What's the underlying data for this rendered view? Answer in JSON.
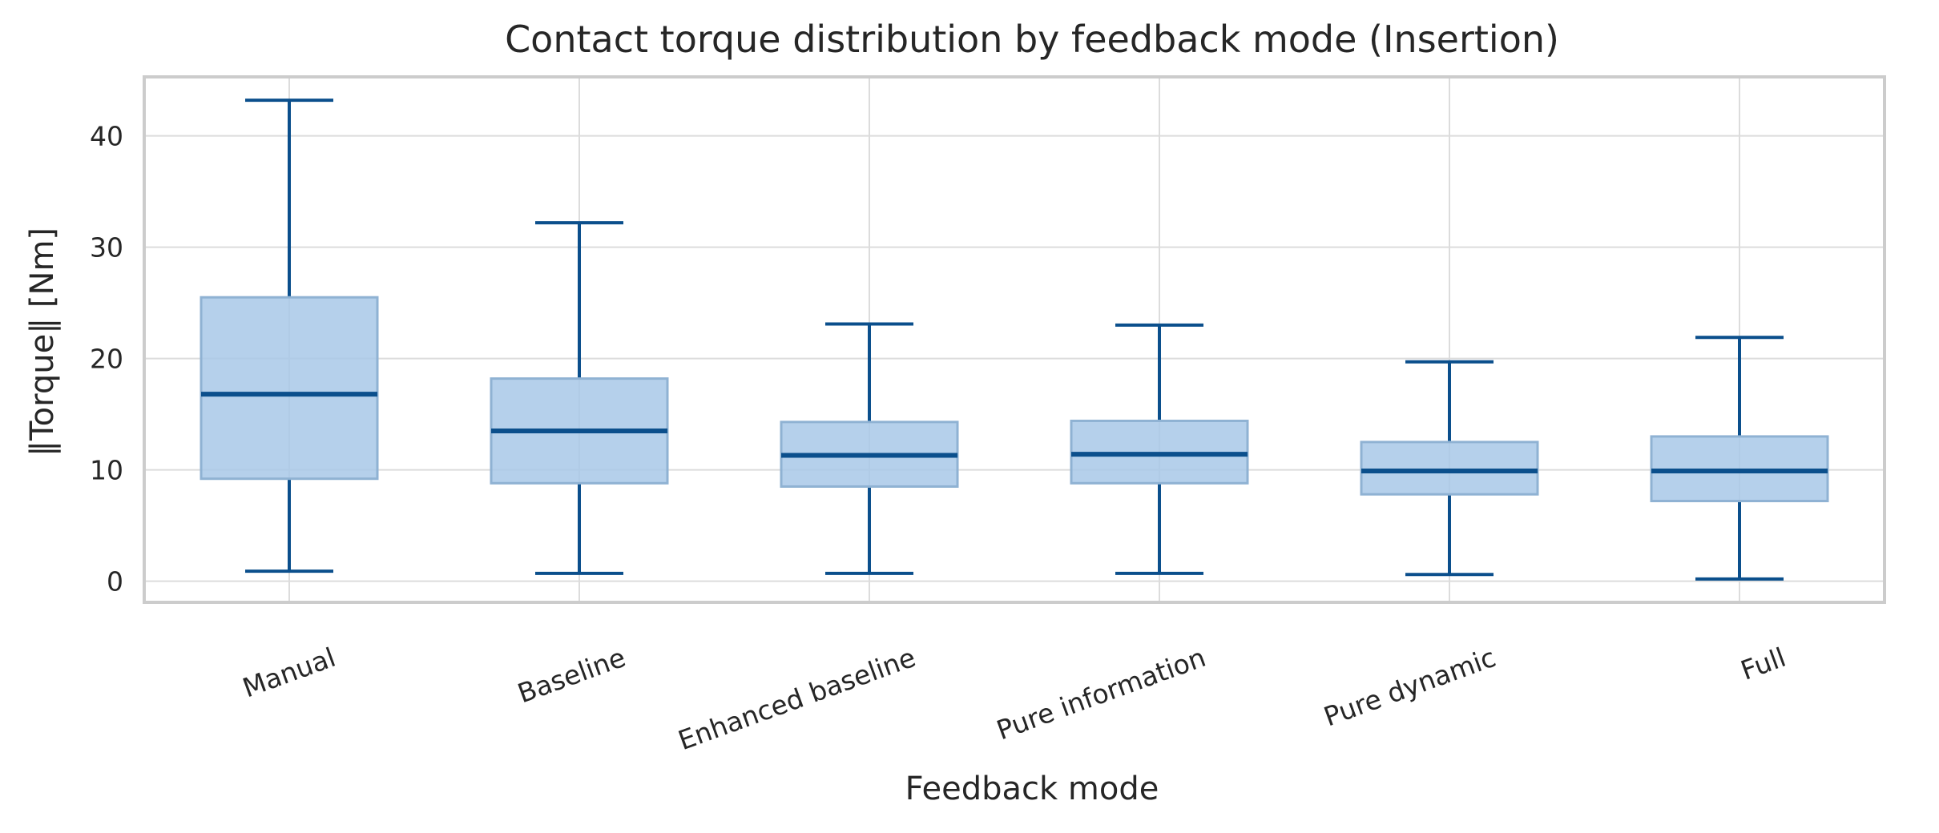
{
  "chart_data": {
    "type": "box",
    "title": "Contact torque distribution by feedback mode (Insertion)",
    "xlabel": "Feedback mode",
    "ylabel": "‖Torque‖ [Nm]",
    "ylim": [
      -1.9,
      45.3
    ],
    "yticks": [
      0,
      10,
      20,
      30,
      40
    ],
    "grid": true,
    "categories": [
      "Manual",
      "Baseline",
      "Enhanced baseline",
      "Pure information",
      "Pure dynamic",
      "Full"
    ],
    "boxes": [
      {
        "category": "Manual",
        "whisker_low": 0.9,
        "q1": 9.2,
        "median": 16.8,
        "q3": 25.5,
        "whisker_high": 43.2
      },
      {
        "category": "Baseline",
        "whisker_low": 0.7,
        "q1": 8.8,
        "median": 13.5,
        "q3": 18.2,
        "whisker_high": 32.2
      },
      {
        "category": "Enhanced baseline",
        "whisker_low": 0.7,
        "q1": 8.5,
        "median": 11.3,
        "q3": 14.3,
        "whisker_high": 23.1
      },
      {
        "category": "Pure information",
        "whisker_low": 0.7,
        "q1": 8.8,
        "median": 11.4,
        "q3": 14.4,
        "whisker_high": 23.0
      },
      {
        "category": "Pure dynamic",
        "whisker_low": 0.6,
        "q1": 7.8,
        "median": 9.9,
        "q3": 12.5,
        "whisker_high": 19.7
      },
      {
        "category": "Full",
        "whisker_low": 0.2,
        "q1": 7.2,
        "median": 9.9,
        "q3": 13.0,
        "whisker_high": 21.9
      }
    ],
    "colors": {
      "box_fill": "#a8c8e8",
      "box_edge": "#8fb2d3",
      "line": "#0b4f8c",
      "grid": "#dcdcdc",
      "frame": "#cccccc",
      "text": "#262626"
    }
  }
}
